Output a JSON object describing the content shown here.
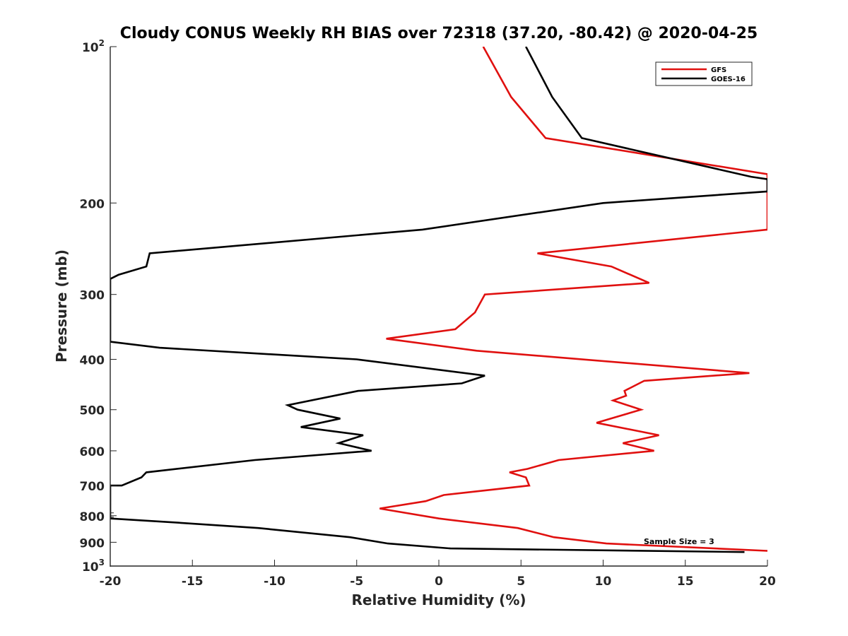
{
  "chart_data": {
    "type": "line",
    "title": "Cloudy CONUS Weekly RH BIAS over 72318 (37.20, -80.42) @ 2020-04-25",
    "xlabel": "Relative Humidity (%)",
    "ylabel": "Pressure (mb)",
    "xlim": [
      -20,
      20
    ],
    "ylim": [
      100,
      1000
    ],
    "y_scale": "log",
    "y_reversed": true,
    "grid": false,
    "legend_position": "top-right",
    "x_ticks": [
      "-20",
      "-15",
      "-10",
      "-5",
      "0",
      "5",
      "10",
      "15",
      "20"
    ],
    "y_ticks": [
      {
        "value": 100,
        "base": "10",
        "exp": "2"
      },
      {
        "value": 200,
        "label": "200"
      },
      {
        "value": 300,
        "label": "300"
      },
      {
        "value": 400,
        "label": "400"
      },
      {
        "value": 500,
        "label": "500"
      },
      {
        "value": 600,
        "label": "600"
      },
      {
        "value": 700,
        "label": "700"
      },
      {
        "value": 800,
        "label": "800"
      },
      {
        "value": 900,
        "label": "900"
      },
      {
        "value": 1000,
        "base": "10",
        "exp": "3"
      }
    ],
    "annotation": "Sample Size = 3",
    "series": [
      {
        "name": "GFS",
        "color": "#e0100f",
        "points": [
          [
            2.7,
            100
          ],
          [
            4.4,
            125
          ],
          [
            6.5,
            150
          ],
          [
            19.5,
            175
          ],
          [
            20.0,
            176
          ],
          [
            20.0,
            225
          ],
          [
            6.0,
            250
          ],
          [
            10.5,
            265
          ],
          [
            12.8,
            285
          ],
          [
            2.8,
            300
          ],
          [
            2.2,
            325
          ],
          [
            1.0,
            350
          ],
          [
            -3.2,
            365
          ],
          [
            2.3,
            385
          ],
          [
            18.9,
            425
          ],
          [
            12.5,
            440
          ],
          [
            11.3,
            460
          ],
          [
            11.4,
            470
          ],
          [
            10.6,
            480
          ],
          [
            12.3,
            500
          ],
          [
            9.6,
            530
          ],
          [
            13.4,
            560
          ],
          [
            11.2,
            580
          ],
          [
            13.1,
            600
          ],
          [
            7.3,
            625
          ],
          [
            5.4,
            650
          ],
          [
            4.3,
            660
          ],
          [
            5.3,
            675
          ],
          [
            5.5,
            700
          ],
          [
            0.3,
            730
          ],
          [
            -0.8,
            750
          ],
          [
            -3.6,
            775
          ],
          [
            0.0,
            810
          ],
          [
            4.8,
            845
          ],
          [
            7.0,
            880
          ],
          [
            10.2,
            905
          ],
          [
            20.0,
            935
          ]
        ]
      },
      {
        "name": "GOES-16",
        "color": "#000000",
        "points": [
          [
            5.3,
            100
          ],
          [
            6.9,
            125
          ],
          [
            8.7,
            150
          ],
          [
            19.0,
            178
          ],
          [
            20.0,
            180
          ],
          [
            20.0,
            190
          ],
          [
            10.0,
            200
          ],
          [
            -1.0,
            225
          ],
          [
            -17.6,
            250
          ],
          [
            -17.8,
            265
          ],
          [
            -19.5,
            275
          ],
          [
            -20.0,
            280
          ],
          [
            -20.0,
            370
          ],
          [
            -17.0,
            380
          ],
          [
            -5.0,
            400
          ],
          [
            2.8,
            430
          ],
          [
            1.4,
            445
          ],
          [
            -4.9,
            460
          ],
          [
            -9.2,
            490
          ],
          [
            -8.6,
            500
          ],
          [
            -6.0,
            520
          ],
          [
            -8.4,
            540
          ],
          [
            -4.6,
            560
          ],
          [
            -6.1,
            580
          ],
          [
            -4.1,
            600
          ],
          [
            -11.2,
            625
          ],
          [
            -17.8,
            660
          ],
          [
            -18.1,
            675
          ],
          [
            -19.3,
            700
          ],
          [
            -20.0,
            700
          ],
          [
            -20.0,
            810
          ],
          [
            -15.9,
            825
          ],
          [
            -11.0,
            845
          ],
          [
            -5.4,
            880
          ],
          [
            -3.1,
            905
          ],
          [
            0.7,
            925
          ],
          [
            18.6,
            940
          ]
        ]
      }
    ]
  }
}
